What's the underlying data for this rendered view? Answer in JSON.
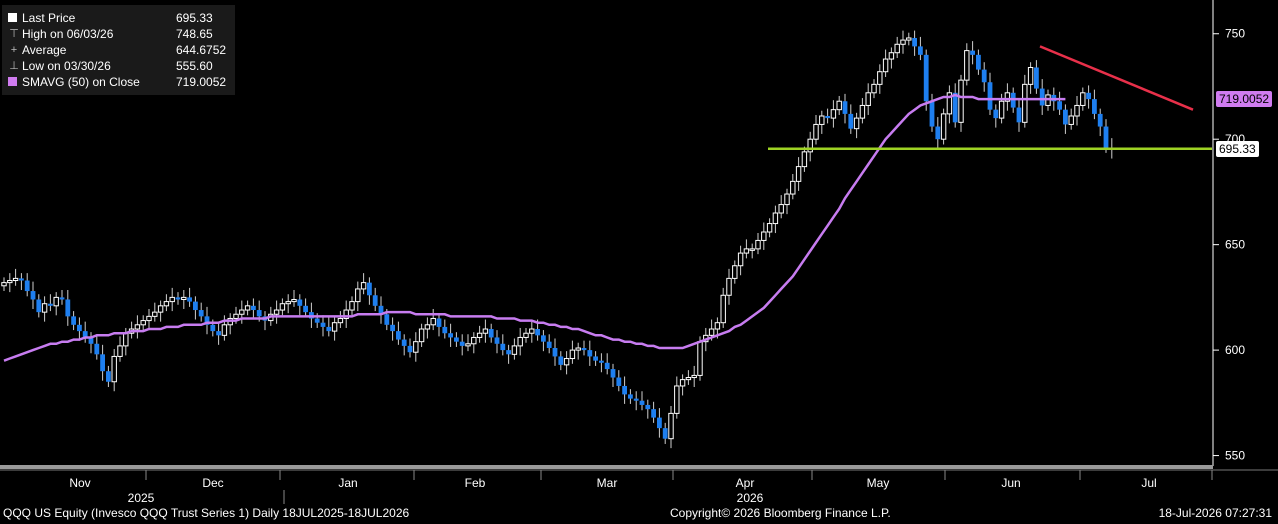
{
  "legend": {
    "items": [
      {
        "label": "Last Price",
        "value": "695.33",
        "glyph": "square",
        "color": "#ffffff"
      },
      {
        "label": "High on 06/03/26",
        "value": "748.65",
        "glyph": "⊤",
        "color": "#bbbbbb"
      },
      {
        "label": "Average",
        "value": "644.6752",
        "glyph": "+",
        "color": "#bbbbbb"
      },
      {
        "label": "Low on 03/30/26",
        "value": "555.60",
        "glyph": "⊥",
        "color": "#bbbbbb"
      },
      {
        "label": "SMAVG (50)  on Close",
        "value": "719.0052",
        "glyph": "square",
        "color": "#d07cf0"
      }
    ]
  },
  "axis": {
    "y_ticks": [
      "750",
      "700",
      "650",
      "600",
      "550"
    ],
    "month_labels": [
      "Nov",
      "Dec",
      "Jan",
      "Feb",
      "Mar",
      "Apr",
      "May",
      "Jun",
      "Jul"
    ],
    "year_labels": [
      "2025",
      "2026"
    ]
  },
  "price_labels": {
    "sma": "719.0052",
    "last": "695.33"
  },
  "footer": {
    "left": "QQQ US Equity (Invesco QQQ Trust Series 1) Daily 18JUL2025-18JUL2026",
    "center": "Copyright© 2026 Bloomberg Finance L.P.",
    "right": "18-Jul-2026 07:27:31"
  },
  "colors": {
    "background": "#000000",
    "up_candle": "#ffffff",
    "down_candle": "#1e7ff0",
    "sma": "#c77cf0",
    "support_line": "#9ed324",
    "resistance_line": "#e8304a",
    "last_label_bg": "#ffffff",
    "sma_label_bg": "#d07cf0"
  },
  "chart_data": {
    "type": "candlestick",
    "y_scale": "linear",
    "ylim": [
      546,
      766
    ],
    "grid": false,
    "legend_position": "top-left",
    "month_labels": [
      "Nov",
      "Dec",
      "Jan",
      "Feb",
      "Mar",
      "Apr",
      "May",
      "Jun",
      "Jul"
    ],
    "year_labels": [
      "2025",
      "2026"
    ],
    "closes": [
      632,
      633,
      634,
      633,
      628,
      624,
      618,
      622,
      621,
      625,
      624,
      616,
      612,
      609,
      606,
      603,
      598,
      590,
      585,
      597,
      602,
      608,
      610,
      612,
      614,
      616,
      618,
      621,
      623,
      625,
      624,
      625,
      623,
      619,
      616,
      612,
      609,
      607,
      612,
      615,
      617,
      619,
      621,
      619,
      616,
      614,
      617,
      619,
      622,
      623,
      624,
      621,
      618,
      615,
      613,
      611,
      609,
      613,
      615,
      619,
      623,
      629,
      632,
      626,
      621,
      617,
      612,
      609,
      605,
      602,
      599,
      604,
      610,
      612,
      615,
      611,
      608,
      606,
      604,
      602,
      603,
      606,
      608,
      610,
      606,
      603,
      600,
      598,
      602,
      606,
      608,
      610,
      607,
      604,
      601,
      597,
      593,
      596,
      600,
      601,
      600,
      597,
      595,
      594,
      591,
      587,
      583,
      579,
      577,
      576,
      574,
      572,
      568,
      563,
      558,
      570,
      583,
      586,
      587,
      588,
      604,
      607,
      610,
      613,
      626,
      634,
      640,
      646,
      648,
      648,
      652,
      656,
      660,
      665,
      669,
      674,
      680,
      687,
      694,
      700,
      707,
      711,
      710,
      714,
      718,
      712,
      705,
      710,
      716,
      722,
      726,
      732,
      738,
      741,
      745,
      747,
      748,
      744,
      740,
      718,
      706,
      700,
      712,
      722,
      708,
      728,
      742,
      740,
      733,
      727,
      714,
      710,
      718,
      722,
      715,
      708,
      726,
      734,
      724,
      716,
      721,
      718,
      714,
      707,
      711,
      716,
      722,
      719,
      712,
      706,
      696,
      695.33
    ],
    "sma50": [
      595,
      596,
      597,
      598,
      599,
      600,
      601,
      602,
      603,
      603,
      604,
      604,
      605,
      605,
      606,
      606,
      607,
      607,
      607,
      608,
      608,
      608,
      609,
      609,
      609,
      610,
      610,
      610,
      611,
      611,
      611,
      612,
      612,
      612,
      612,
      613,
      613,
      613,
      614,
      614,
      614,
      615,
      615,
      615,
      615,
      615,
      616,
      616,
      616,
      616,
      616,
      616,
      616,
      616,
      616,
      616,
      616,
      616,
      616,
      616,
      616,
      617,
      617,
      617,
      617,
      617,
      618,
      618,
      618,
      618,
      618,
      617,
      617,
      617,
      617,
      617,
      617,
      616,
      616,
      616,
      616,
      616,
      616,
      616,
      616,
      615,
      615,
      615,
      615,
      614,
      614,
      614,
      613,
      613,
      612,
      612,
      611,
      611,
      610,
      610,
      609,
      608,
      607,
      607,
      606,
      605,
      605,
      604,
      604,
      603,
      603,
      602,
      602,
      601,
      601,
      601,
      601,
      601,
      602,
      603,
      604,
      605,
      606,
      607,
      608,
      609,
      611,
      612,
      614,
      616,
      618,
      620,
      623,
      626,
      629,
      632,
      635,
      639,
      643,
      647,
      651,
      655,
      659,
      663,
      667,
      672,
      676,
      680,
      684,
      688,
      692,
      696,
      700,
      703,
      706,
      709,
      712,
      714,
      716,
      717,
      718,
      719,
      720,
      720,
      721,
      720,
      720,
      720,
      719,
      719,
      719,
      719,
      719,
      719,
      719,
      719,
      719,
      719,
      719,
      719,
      719,
      719,
      719,
      719.0052
    ],
    "y_ticks": [
      750,
      700,
      650,
      600,
      550
    ],
    "last_price": 695.33,
    "high": {
      "date": "06/03/26",
      "value": 748.65
    },
    "low": {
      "date": "03/30/26",
      "value": 555.6
    },
    "average": 644.6752,
    "sma_last": 719.0052,
    "support_level": 695.5,
    "resistance_line": {
      "start": 744,
      "end": 714
    }
  }
}
